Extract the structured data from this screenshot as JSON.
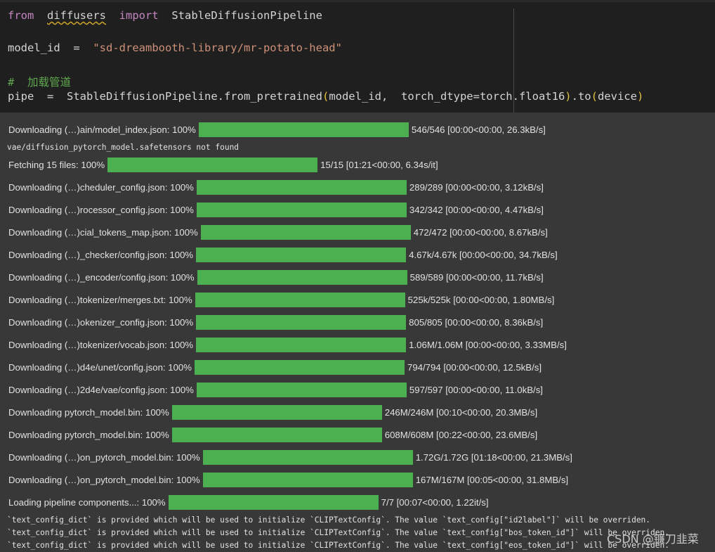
{
  "code": {
    "line1": {
      "from_kw": "from",
      "module": "diffusers",
      "import_kw": "import",
      "cls": "StableDiffusionPipeline"
    },
    "line2": {
      "var": "model_id",
      "eq": "=",
      "value": "\"sd-dreambooth-library/mr-potato-head\""
    },
    "line3": {
      "comment": "#  加载管道"
    },
    "line4": {
      "lhs": "pipe",
      "eq": "=",
      "call": "StableDiffusionPipeline.from_pretrained",
      "lp": "(",
      "arg1": "model_id,",
      "arg2": "torch_dtype=torch.float16",
      "rp": ")",
      "dot_to": ".to",
      "lp2": "(",
      "arg3": "device",
      "rp2": ")"
    }
  },
  "progress_rows": [
    {
      "label": "Downloading (…)ain/model_index.json: 100%",
      "fraction": 1.0,
      "stats": "546/546 [00:00<00:00, 26.3kB/s]"
    },
    {
      "label": "Fetching 15 files: 100%",
      "fraction": 1.0,
      "stats": "15/15 [01:21<00:00, 6.34s/it]"
    },
    {
      "label": "Downloading (…)cheduler_config.json: 100%",
      "fraction": 1.0,
      "stats": "289/289 [00:00<00:00, 3.12kB/s]"
    },
    {
      "label": "Downloading (…)rocessor_config.json: 100%",
      "fraction": 1.0,
      "stats": "342/342 [00:00<00:00, 4.47kB/s]"
    },
    {
      "label": "Downloading (…)cial_tokens_map.json: 100%",
      "fraction": 1.0,
      "stats": "472/472 [00:00<00:00, 8.67kB/s]"
    },
    {
      "label": "Downloading (…)_checker/config.json: 100%",
      "fraction": 1.0,
      "stats": "4.67k/4.67k [00:00<00:00, 34.7kB/s]"
    },
    {
      "label": "Downloading (…)_encoder/config.json: 100%",
      "fraction": 1.0,
      "stats": "589/589 [00:00<00:00, 11.7kB/s]"
    },
    {
      "label": "Downloading (…)tokenizer/merges.txt: 100%",
      "fraction": 1.0,
      "stats": "525k/525k [00:00<00:00, 1.80MB/s]"
    },
    {
      "label": "Downloading (…)okenizer_config.json: 100%",
      "fraction": 1.0,
      "stats": "805/805 [00:00<00:00, 8.36kB/s]"
    },
    {
      "label": "Downloading (…)tokenizer/vocab.json: 100%",
      "fraction": 1.0,
      "stats": "1.06M/1.06M [00:00<00:00, 3.33MB/s]"
    },
    {
      "label": "Downloading (…)d4e/unet/config.json: 100%",
      "fraction": 1.0,
      "stats": "794/794 [00:00<00:00, 12.5kB/s]"
    },
    {
      "label": "Downloading (…)2d4e/vae/config.json: 100%",
      "fraction": 1.0,
      "stats": "597/597 [00:00<00:00, 11.0kB/s]"
    },
    {
      "label": "Downloading pytorch_model.bin: 100%",
      "fraction": 1.0,
      "stats": "246M/246M [00:10<00:00, 20.3MB/s]"
    },
    {
      "label": "Downloading pytorch_model.bin: 100%",
      "fraction": 1.0,
      "stats": "608M/608M [00:22<00:00, 23.6MB/s]"
    },
    {
      "label": "Downloading (…)on_pytorch_model.bin: 100%",
      "fraction": 1.0,
      "stats": "1.72G/1.72G [01:18<00:00, 21.3MB/s]"
    },
    {
      "label": "Downloading (…)on_pytorch_model.bin: 100%",
      "fraction": 1.0,
      "stats": "167M/167M [00:05<00:00, 31.8MB/s]"
    },
    {
      "label": "Loading pipeline components...: 100%",
      "fraction": 1.0,
      "stats": "7/7 [00:07<00:00, 1.22it/s]"
    }
  ],
  "stderr": {
    "vae_not_found": "vae/diffusion_pytorch_model.safetensors not found",
    "warn1": "`text_config_dict` is provided which will be used to initialize `CLIPTextConfig`. The value `text_config[\"id2label\"]` will be overriden.",
    "warn2": "`text_config_dict` is provided which will be used to initialize `CLIPTextConfig`. The value `text_config[\"bos_token_id\"]` will be overriden.",
    "warn3": "`text_config_dict` is provided which will be used to initialize `CLIPTextConfig`. The value `text_config[\"eos_token_id\"]` will be overriden."
  },
  "watermark": "CSDN @镰刀韭菜",
  "colors": {
    "progress_bar": "#4caf50",
    "keyword": "#c586c0",
    "string": "#ce9178",
    "comment": "#5fa84f"
  }
}
